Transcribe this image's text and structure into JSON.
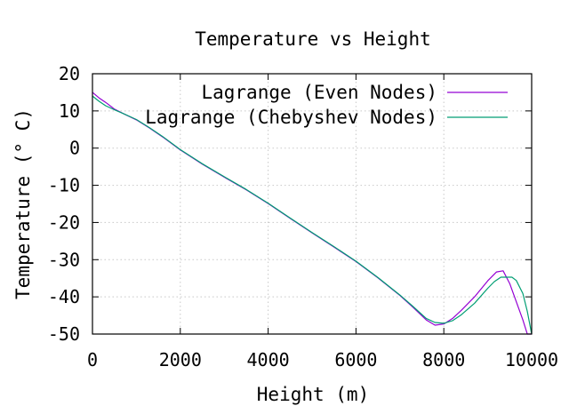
{
  "chart_data": {
    "type": "line",
    "title": "Temperature vs Height",
    "xlabel": "Height (m)",
    "ylabel": "Temperature (° C)",
    "xlim": [
      0,
      10000
    ],
    "ylim": [
      -50,
      20
    ],
    "xticks": [
      0,
      2000,
      4000,
      6000,
      8000,
      10000
    ],
    "yticks": [
      -50,
      -40,
      -30,
      -20,
      -10,
      0,
      10,
      20
    ],
    "grid": true,
    "legend_position": "top-right",
    "series": [
      {
        "name": "Lagrange (Even Nodes)",
        "color": "#9400d3",
        "x": [
          0,
          150,
          300,
          500,
          700,
          1000,
          1300,
          1600,
          2000,
          2500,
          3000,
          3500,
          4000,
          4500,
          5000,
          5500,
          6000,
          6500,
          7000,
          7300,
          7600,
          7800,
          8000,
          8200,
          8400,
          8700,
          9000,
          9200,
          9350,
          9500,
          9650,
          9800,
          9900,
          10000
        ],
        "y": [
          15,
          13.5,
          12.3,
          10.5,
          9.3,
          7.6,
          5.4,
          3,
          -0.5,
          -4.3,
          -7.8,
          -11.2,
          -14.9,
          -18.9,
          -22.8,
          -26.6,
          -30.5,
          -34.9,
          -39.6,
          -42.8,
          -46.2,
          -47.6,
          -47.3,
          -45.8,
          -43.6,
          -40,
          -35.7,
          -33.3,
          -33,
          -36.4,
          -41.3,
          -46.2,
          -51.3,
          -56.5
        ]
      },
      {
        "name": "Lagrange (Chebyshev Nodes)",
        "color": "#009e73",
        "x": [
          0,
          150,
          300,
          500,
          700,
          1000,
          1300,
          1600,
          2000,
          2500,
          3000,
          3500,
          4000,
          4500,
          5000,
          5500,
          6000,
          6500,
          7000,
          7300,
          7600,
          7800,
          8000,
          8200,
          8400,
          8700,
          9000,
          9150,
          9300,
          9450,
          9550,
          9650,
          9800,
          9900,
          10000
        ],
        "y": [
          14,
          12.6,
          11.4,
          10.3,
          9.3,
          7.7,
          5.5,
          3.1,
          -0.4,
          -4.2,
          -7.7,
          -11.1,
          -14.8,
          -18.8,
          -22.7,
          -26.5,
          -30.4,
          -34.8,
          -39.5,
          -42.6,
          -45.8,
          -46.9,
          -47.1,
          -46.4,
          -44.8,
          -41.7,
          -37.7,
          -35.9,
          -34.7,
          -34.7,
          -34.7,
          -35.6,
          -39.1,
          -43.9,
          -56.2
        ]
      }
    ]
  }
}
